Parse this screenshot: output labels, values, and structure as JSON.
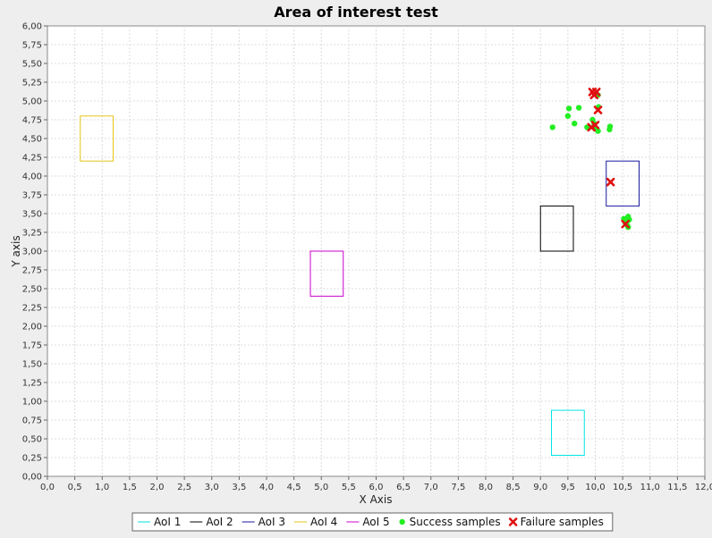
{
  "chart_data": {
    "type": "scatter",
    "title": "Area of interest test",
    "xlabel": "X Axis",
    "ylabel": "Y axis",
    "xlim": [
      0,
      12
    ],
    "ylim": [
      0,
      6
    ],
    "x_ticks": [
      "0,0",
      "0,5",
      "1,0",
      "1,5",
      "2,0",
      "2,5",
      "3,0",
      "3,5",
      "4,0",
      "4,5",
      "5,0",
      "5,5",
      "6,0",
      "6,5",
      "7,0",
      "7,5",
      "8,0",
      "8,5",
      "9,0",
      "9,5",
      "10,0",
      "10,5",
      "11,0",
      "11,5",
      "12,0"
    ],
    "y_ticks": [
      "0,00",
      "0,25",
      "0,50",
      "0,75",
      "1,00",
      "1,25",
      "1,50",
      "1,75",
      "2,00",
      "2,25",
      "2,50",
      "2,75",
      "3,00",
      "3,25",
      "3,50",
      "3,75",
      "4,00",
      "4,25",
      "4,50",
      "4,75",
      "5,00",
      "5,25",
      "5,50",
      "5,75",
      "6,00"
    ],
    "grid": true,
    "legend_position": "bottom",
    "areas": [
      {
        "name": "AoI 1",
        "color": "#00e6e6",
        "x0": 9.2,
        "x1": 9.8,
        "y0": 0.28,
        "y1": 0.88
      },
      {
        "name": "AoI 2",
        "color": "#000000",
        "x0": 9.0,
        "x1": 9.6,
        "y0": 3.0,
        "y1": 3.6
      },
      {
        "name": "AoI 3",
        "color": "#1a1aa0",
        "x0": 10.2,
        "x1": 10.8,
        "y0": 3.6,
        "y1": 4.2
      },
      {
        "name": "AoI 4",
        "color": "#e6c419",
        "x0": 0.6,
        "x1": 1.2,
        "y0": 4.2,
        "y1": 4.8
      },
      {
        "name": "AoI 5",
        "color": "#cc00cc",
        "x0": 4.8,
        "x1": 5.4,
        "y0": 2.4,
        "y1": 3.0
      }
    ],
    "series": [
      {
        "name": "Success samples",
        "marker": "circle",
        "color": "#22ee22",
        "points": [
          [
            9.22,
            4.65
          ],
          [
            9.5,
            4.8
          ],
          [
            9.52,
            4.9
          ],
          [
            9.62,
            4.7
          ],
          [
            9.7,
            4.91
          ],
          [
            9.85,
            4.65
          ],
          [
            9.95,
            4.75
          ],
          [
            9.98,
            4.7
          ],
          [
            10.0,
            4.63
          ],
          [
            10.05,
            4.6
          ],
          [
            10.06,
            4.92
          ],
          [
            10.05,
            5.08
          ],
          [
            10.26,
            4.62
          ],
          [
            10.27,
            4.66
          ],
          [
            10.52,
            3.43
          ],
          [
            10.55,
            3.38
          ],
          [
            10.58,
            3.35
          ],
          [
            10.6,
            3.46
          ],
          [
            10.6,
            3.32
          ],
          [
            10.62,
            3.42
          ]
        ]
      },
      {
        "name": "Failure samples",
        "marker": "x",
        "color": "#e01010",
        "points": [
          [
            9.95,
            5.12
          ],
          [
            10.02,
            5.12
          ],
          [
            9.98,
            5.08
          ],
          [
            10.05,
            4.88
          ],
          [
            9.93,
            4.65
          ],
          [
            10.0,
            4.68
          ],
          [
            10.28,
            3.92
          ],
          [
            10.55,
            3.36
          ]
        ]
      }
    ]
  }
}
